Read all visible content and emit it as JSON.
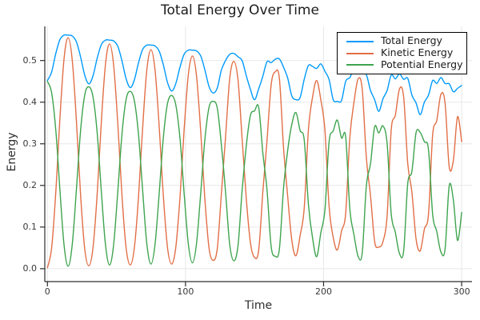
{
  "title": "Total Energy Over Time",
  "colors": {
    "background": "#ffffff",
    "grid": "#e8e8e8",
    "axis": "#2d2d2d",
    "title_text": "#1c1c1c",
    "label_text": "#2e2e2e",
    "tick_text": "#383838",
    "legend_border": "#000000",
    "legend_background": "#ffffff",
    "total_energy": "#009afa",
    "kinetic_energy": "#e26f46",
    "potential_energy": "#3ea44e"
  },
  "axes": {
    "xlabel": "Time",
    "ylabel": "Energy",
    "xticks": {
      "values": [
        0,
        100,
        200,
        300
      ],
      "labels": [
        "0",
        "100",
        "200",
        "300"
      ]
    },
    "yticks": {
      "values": [
        0,
        0.1,
        0.2,
        0.3,
        0.4,
        0.5
      ],
      "labels": [
        "0.0",
        "0.1",
        "0.2",
        "0.3",
        "0.4",
        "0.5"
      ]
    }
  },
  "chart_data": {
    "type": "line",
    "title": "Total Energy Over Time",
    "xlabel": "Time",
    "ylabel": "Energy",
    "grid": true,
    "legend_position": "top-right",
    "xlim": [
      0,
      300
    ],
    "ylim": [
      0,
      0.58
    ],
    "axis_xlim": [
      -1.9,
      307.5
    ],
    "axis_ylim": [
      -0.031,
      0.582
    ],
    "x": [
      0,
      3,
      6,
      9,
      12,
      15,
      18,
      21,
      24,
      27,
      30,
      33,
      36,
      39,
      42,
      45,
      48,
      51,
      54,
      57,
      60,
      63,
      66,
      69,
      72,
      75,
      78,
      81,
      84,
      87,
      90,
      93,
      96,
      99,
      102,
      105,
      108,
      111,
      114,
      117,
      120,
      123,
      126,
      129,
      132,
      135,
      138,
      141,
      144,
      147,
      150,
      153,
      156,
      159,
      162,
      165,
      168,
      171,
      174,
      177,
      180,
      183,
      186,
      189,
      192,
      195,
      198,
      201,
      204,
      207,
      210,
      213,
      216,
      219,
      222,
      225,
      228,
      231,
      234,
      237,
      240,
      243,
      246,
      249,
      252,
      255,
      258,
      261,
      264,
      267,
      270,
      273,
      276,
      279,
      282,
      285,
      288,
      291,
      294,
      297,
      300
    ],
    "series": [
      {
        "name": "Total Energy",
        "color": "#009afa",
        "values": [
          0.452,
          0.472,
          0.516,
          0.55,
          0.561,
          0.561,
          0.559,
          0.545,
          0.509,
          0.465,
          0.444,
          0.463,
          0.505,
          0.538,
          0.549,
          0.549,
          0.547,
          0.534,
          0.499,
          0.456,
          0.435,
          0.454,
          0.495,
          0.527,
          0.537,
          0.537,
          0.535,
          0.522,
          0.489,
          0.447,
          0.427,
          0.445,
          0.484,
          0.515,
          0.525,
          0.525,
          0.523,
          0.511,
          0.478,
          0.438,
          0.422,
          0.434,
          0.477,
          0.5,
          0.515,
          0.517,
          0.509,
          0.5,
          0.464,
          0.431,
          0.406,
          0.432,
          0.462,
          0.497,
          0.495,
          0.503,
          0.504,
          0.484,
          0.458,
          0.415,
          0.406,
          0.411,
          0.455,
          0.488,
          0.486,
          0.481,
          0.492,
          0.474,
          0.454,
          0.406,
          0.402,
          0.404,
          0.45,
          0.459,
          0.481,
          0.486,
          0.469,
          0.466,
          0.428,
          0.406,
          0.378,
          0.408,
          0.428,
          0.465,
          0.456,
          0.468,
          0.455,
          0.457,
          0.417,
          0.398,
          0.37,
          0.4,
          0.417,
          0.452,
          0.445,
          0.459,
          0.445,
          0.444,
          0.425,
          0.433,
          0.44
        ]
      },
      {
        "name": "Kinetic Energy",
        "color": "#e26f46",
        "values": [
          0.002,
          0.049,
          0.18,
          0.358,
          0.503,
          0.555,
          0.501,
          0.355,
          0.178,
          0.048,
          0.007,
          0.05,
          0.177,
          0.35,
          0.49,
          0.54,
          0.488,
          0.347,
          0.175,
          0.049,
          0.009,
          0.051,
          0.174,
          0.341,
          0.477,
          0.526,
          0.475,
          0.338,
          0.172,
          0.05,
          0.011,
          0.052,
          0.171,
          0.333,
          0.464,
          0.511,
          0.462,
          0.33,
          0.169,
          0.051,
          0.02,
          0.048,
          0.179,
          0.315,
          0.456,
          0.498,
          0.454,
          0.313,
          0.17,
          0.063,
          0.027,
          0.044,
          0.183,
          0.306,
          0.441,
          0.473,
          0.457,
          0.291,
          0.174,
          0.068,
          0.031,
          0.079,
          0.146,
          0.333,
          0.412,
          0.452,
          0.406,
          0.332,
          0.149,
          0.075,
          0.045,
          0.09,
          0.133,
          0.315,
          0.399,
          0.456,
          0.431,
          0.266,
          0.176,
          0.065,
          0.052,
          0.065,
          0.127,
          0.333,
          0.369,
          0.432,
          0.412,
          0.252,
          0.183,
          0.071,
          0.043,
          0.095,
          0.131,
          0.321,
          0.356,
          0.419,
          0.398,
          0.245,
          0.26,
          0.365,
          0.305
        ]
      },
      {
        "name": "Potential Energy",
        "color": "#3ea44e",
        "values": [
          0.45,
          0.423,
          0.336,
          0.192,
          0.058,
          0.006,
          0.058,
          0.19,
          0.331,
          0.417,
          0.437,
          0.413,
          0.328,
          0.188,
          0.059,
          0.009,
          0.059,
          0.187,
          0.324,
          0.407,
          0.426,
          0.403,
          0.321,
          0.186,
          0.06,
          0.011,
          0.06,
          0.184,
          0.317,
          0.397,
          0.416,
          0.393,
          0.313,
          0.182,
          0.061,
          0.014,
          0.061,
          0.181,
          0.309,
          0.387,
          0.402,
          0.386,
          0.298,
          0.185,
          0.059,
          0.019,
          0.055,
          0.187,
          0.294,
          0.368,
          0.379,
          0.388,
          0.279,
          0.191,
          0.054,
          0.03,
          0.047,
          0.193,
          0.284,
          0.347,
          0.375,
          0.332,
          0.309,
          0.155,
          0.074,
          0.029,
          0.086,
          0.142,
          0.305,
          0.331,
          0.357,
          0.314,
          0.317,
          0.144,
          0.082,
          0.03,
          0.038,
          0.2,
          0.252,
          0.341,
          0.326,
          0.343,
          0.301,
          0.132,
          0.087,
          0.036,
          0.043,
          0.205,
          0.234,
          0.327,
          0.327,
          0.305,
          0.286,
          0.131,
          0.089,
          0.04,
          0.047,
          0.199,
          0.165,
          0.068,
          0.135
        ]
      }
    ]
  }
}
